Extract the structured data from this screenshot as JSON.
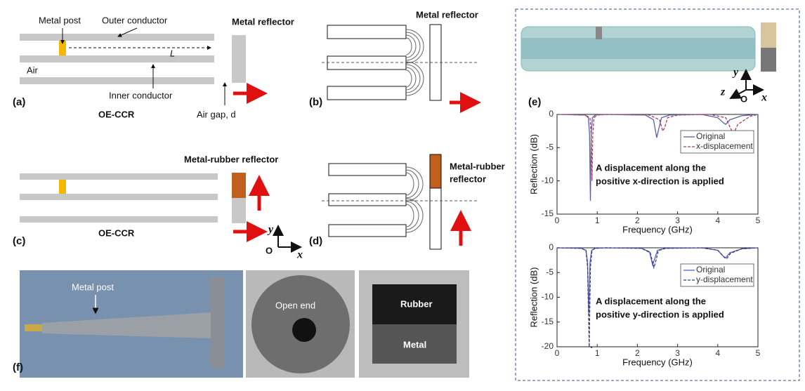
{
  "panels": {
    "a": {
      "label": "(a)",
      "metal_post": "Metal post",
      "outer_conductor": "Outer conductor",
      "length": "L",
      "air": "Air",
      "inner_conductor": "Inner conductor",
      "reflector": "Metal reflector",
      "air_gap": "Air gap, d",
      "caption": "OE-CCR"
    },
    "b": {
      "label": "(b)",
      "reflector": "Metal reflector"
    },
    "c": {
      "label": "(c)",
      "reflector": "Metal-rubber reflector",
      "caption": "OE-CCR",
      "axis_y": "y",
      "origin": "O",
      "axis_x": "x"
    },
    "d": {
      "label": "(d)",
      "reflector": [
        "Metal-rubber",
        "reflector"
      ]
    },
    "e": {
      "label": "(e)",
      "axis_y": "y",
      "axis_z": "z",
      "origin": "O",
      "axis_x": "x"
    },
    "f": {
      "label": "(f)",
      "metal_post": "Metal post",
      "open_end": "Open end",
      "rubber": "Rubber",
      "metal": "Metal"
    }
  },
  "chart_data": [
    {
      "type": "line",
      "xlabel": "Frequency (GHz)",
      "ylabel": "Reflection (dB)",
      "xlim": [
        0,
        5
      ],
      "xticks": [
        0,
        1,
        2,
        3,
        4,
        5
      ],
      "ylim": [
        -15,
        0
      ],
      "yticks": [
        -15,
        -10,
        -5,
        0
      ],
      "annotation": [
        "A displacement along the",
        "positive x-direction is applied"
      ],
      "series": [
        {
          "name": "Original",
          "color": "#5b5fa8",
          "x": [
            0,
            0.7,
            0.78,
            0.81,
            0.83,
            0.85,
            0.88,
            0.95,
            1.2,
            2.2,
            2.4,
            2.48,
            2.52,
            2.6,
            2.8,
            3.6,
            4.0,
            4.15,
            4.2,
            4.3,
            4.6,
            5
          ],
          "values": [
            0,
            -0.1,
            -0.5,
            -3,
            -13,
            -3,
            -0.5,
            -0.1,
            0,
            -0.1,
            -0.8,
            -3.5,
            -2.5,
            -0.5,
            -0.1,
            0,
            -0.5,
            -1.3,
            -1.5,
            -0.8,
            -0.2,
            0
          ]
        },
        {
          "name": "x-displacement",
          "color": "#a8405c",
          "x": [
            0,
            0.7,
            0.82,
            0.85,
            0.87,
            0.89,
            0.92,
            1.0,
            1.3,
            2.3,
            2.55,
            2.63,
            2.68,
            2.75,
            3.0,
            3.8,
            4.2,
            4.35,
            4.4,
            4.5,
            4.8,
            5
          ],
          "values": [
            0,
            -0.1,
            -0.5,
            -3,
            -10,
            -3,
            -0.5,
            -0.1,
            0,
            -0.1,
            -0.8,
            -2.5,
            -2,
            -0.5,
            -0.1,
            0,
            -0.5,
            -2.5,
            -2.8,
            -1.5,
            -0.3,
            0
          ]
        }
      ]
    },
    {
      "type": "line",
      "xlabel": "Frequency (GHz)",
      "ylabel": "Reflection (dB)",
      "xlim": [
        0,
        5
      ],
      "xticks": [
        0,
        1,
        2,
        3,
        4,
        5
      ],
      "ylim": [
        -20,
        0
      ],
      "yticks": [
        -20,
        -15,
        -10,
        -5,
        0
      ],
      "annotation": [
        "A displacement along the",
        "positive y-direction is applied"
      ],
      "series": [
        {
          "name": "Original",
          "color": "#5b5fc8",
          "x": [
            0,
            0.6,
            0.72,
            0.76,
            0.79,
            0.82,
            0.86,
            0.95,
            1.2,
            2.1,
            2.3,
            2.38,
            2.42,
            2.5,
            2.7,
            3.6,
            4.0,
            4.15,
            4.2,
            4.3,
            4.6,
            5
          ],
          "values": [
            0,
            -0.1,
            -0.5,
            -3,
            -13.5,
            -3,
            -0.5,
            -0.1,
            0,
            -0.1,
            -0.8,
            -3.5,
            -2.5,
            -0.5,
            -0.1,
            0,
            -0.5,
            -1.8,
            -2,
            -1,
            -0.2,
            0
          ]
        },
        {
          "name": "y-displacement",
          "color": "#3c3c72",
          "x": [
            0,
            0.6,
            0.72,
            0.76,
            0.8,
            0.83,
            0.87,
            0.95,
            1.2,
            2.1,
            2.32,
            2.41,
            2.45,
            2.52,
            2.7,
            3.6,
            4.0,
            4.17,
            4.22,
            4.32,
            4.6,
            5
          ],
          "values": [
            0,
            -0.1,
            -0.5,
            -4,
            -20,
            -4,
            -0.5,
            -0.1,
            0,
            -0.1,
            -1,
            -4,
            -3,
            -0.6,
            -0.1,
            0,
            -0.5,
            -2,
            -2.2,
            -1.1,
            -0.2,
            0
          ]
        }
      ]
    }
  ]
}
